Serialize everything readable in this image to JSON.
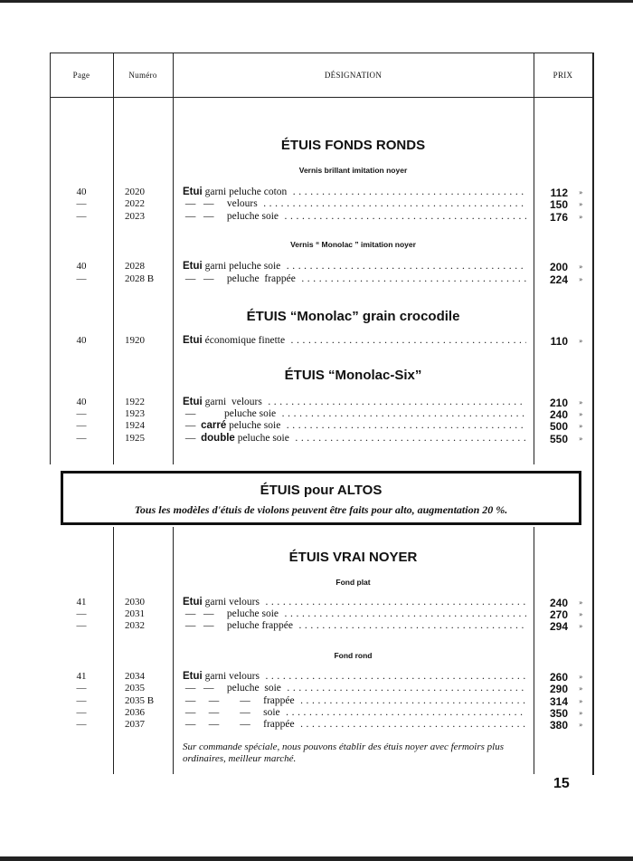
{
  "header": {
    "page": "Page",
    "numero": "Numéro",
    "designation": "DÉSIGNATION",
    "prix": "PRIX"
  },
  "sections": [
    {
      "title": "ÉTUIS FONDS RONDS",
      "subtitle": "Vernis brillant imitation noyer",
      "rows": [
        {
          "page": "40",
          "numero": "2020",
          "bold": "Étui",
          "text": " garni peluche coton",
          "price": "112",
          "suffix": "»"
        },
        {
          "page": "—",
          "numero": "2022",
          "bold": "",
          "text": " —   —     velours",
          "price": "150",
          "suffix": "»"
        },
        {
          "page": "—",
          "numero": "2023",
          "bold": "",
          "text": " —   —     peluche soie",
          "price": "176",
          "suffix": "»"
        }
      ]
    },
    {
      "title": "",
      "subtitle": "Vernis “ Monolac ” imitation noyer",
      "rows": [
        {
          "page": "40",
          "numero": "2028",
          "bold": "Étui",
          "text": " garni peluche soie",
          "price": "200",
          "suffix": "»"
        },
        {
          "page": "—",
          "numero": "2028 B",
          "bold": "",
          "text": " —   —     peluche  frappée",
          "price": "224",
          "suffix": "»"
        }
      ]
    },
    {
      "title": "ÉTUIS “Monolac” grain crocodile",
      "subtitle": "",
      "rows": [
        {
          "page": "40",
          "numero": "1920",
          "bold": "Étui",
          "text": " économique finette",
          "price": "110",
          "suffix": "»"
        }
      ]
    },
    {
      "title": "ÉTUIS “Monolac-Six”",
      "subtitle": "",
      "rows": [
        {
          "page": "40",
          "numero": "1922",
          "bold": "Étui",
          "text": " garni  velours",
          "price": "210",
          "suffix": "»"
        },
        {
          "page": "—",
          "numero": "1923",
          "bold": "",
          "text": " —           peluche soie",
          "price": "240",
          "suffix": "»"
        },
        {
          "page": "—",
          "numero": "1924",
          "bold": "",
          "text": " —  ",
          "bold2": "carré",
          "text2": " peluche soie",
          "price": "500",
          "suffix": "»"
        },
        {
          "page": "—",
          "numero": "1925",
          "bold": "",
          "text": " —  ",
          "bold2": "double",
          "text2": " peluche soie",
          "price": "550",
          "suffix": "»"
        }
      ]
    }
  ],
  "altos_box": {
    "title": "ÉTUIS pour ALTOS",
    "text": "Tous les modèles d'étuis de violons peuvent être faits pour alto, augmentation 20 %."
  },
  "lower_sections": [
    {
      "title": "ÉTUIS VRAI NOYER",
      "subtitle": "Fond plat",
      "rows": [
        {
          "page": "41",
          "numero": "2030",
          "bold": "Étui",
          "text": " garni velours",
          "price": "240",
          "suffix": "»"
        },
        {
          "page": "—",
          "numero": "2031",
          "bold": "",
          "text": " —   —     peluche soie",
          "price": "270",
          "suffix": "»"
        },
        {
          "page": "—",
          "numero": "2032",
          "bold": "",
          "text": " —   —     peluche frappée",
          "price": "294",
          "suffix": "»"
        }
      ]
    },
    {
      "title": "",
      "subtitle": "Fond rond",
      "rows": [
        {
          "page": "41",
          "numero": "2034",
          "bold": "Étui",
          "text": " garni velours",
          "price": "260",
          "suffix": "»"
        },
        {
          "page": "—",
          "numero": "2035",
          "bold": "",
          "text": " —   —     peluche  soie",
          "price": "290",
          "suffix": "»"
        },
        {
          "page": "—",
          "numero": "2035 B",
          "bold": "",
          "text": " —     —        —     frappée",
          "price": "314",
          "suffix": "»"
        },
        {
          "page": "—",
          "numero": "2036",
          "bold": "",
          "text": " —     —        —     soie",
          "price": "350",
          "suffix": "»"
        },
        {
          "page": "—",
          "numero": "2037",
          "bold": "",
          "text": " —     —        —     frappée",
          "price": "380",
          "suffix": "»"
        }
      ]
    }
  ],
  "note": "Sur commande spéciale, nous pouvons établir des étuis noyer avec fermoirs plus ordinaires, meilleur marché.",
  "page_number": "15"
}
